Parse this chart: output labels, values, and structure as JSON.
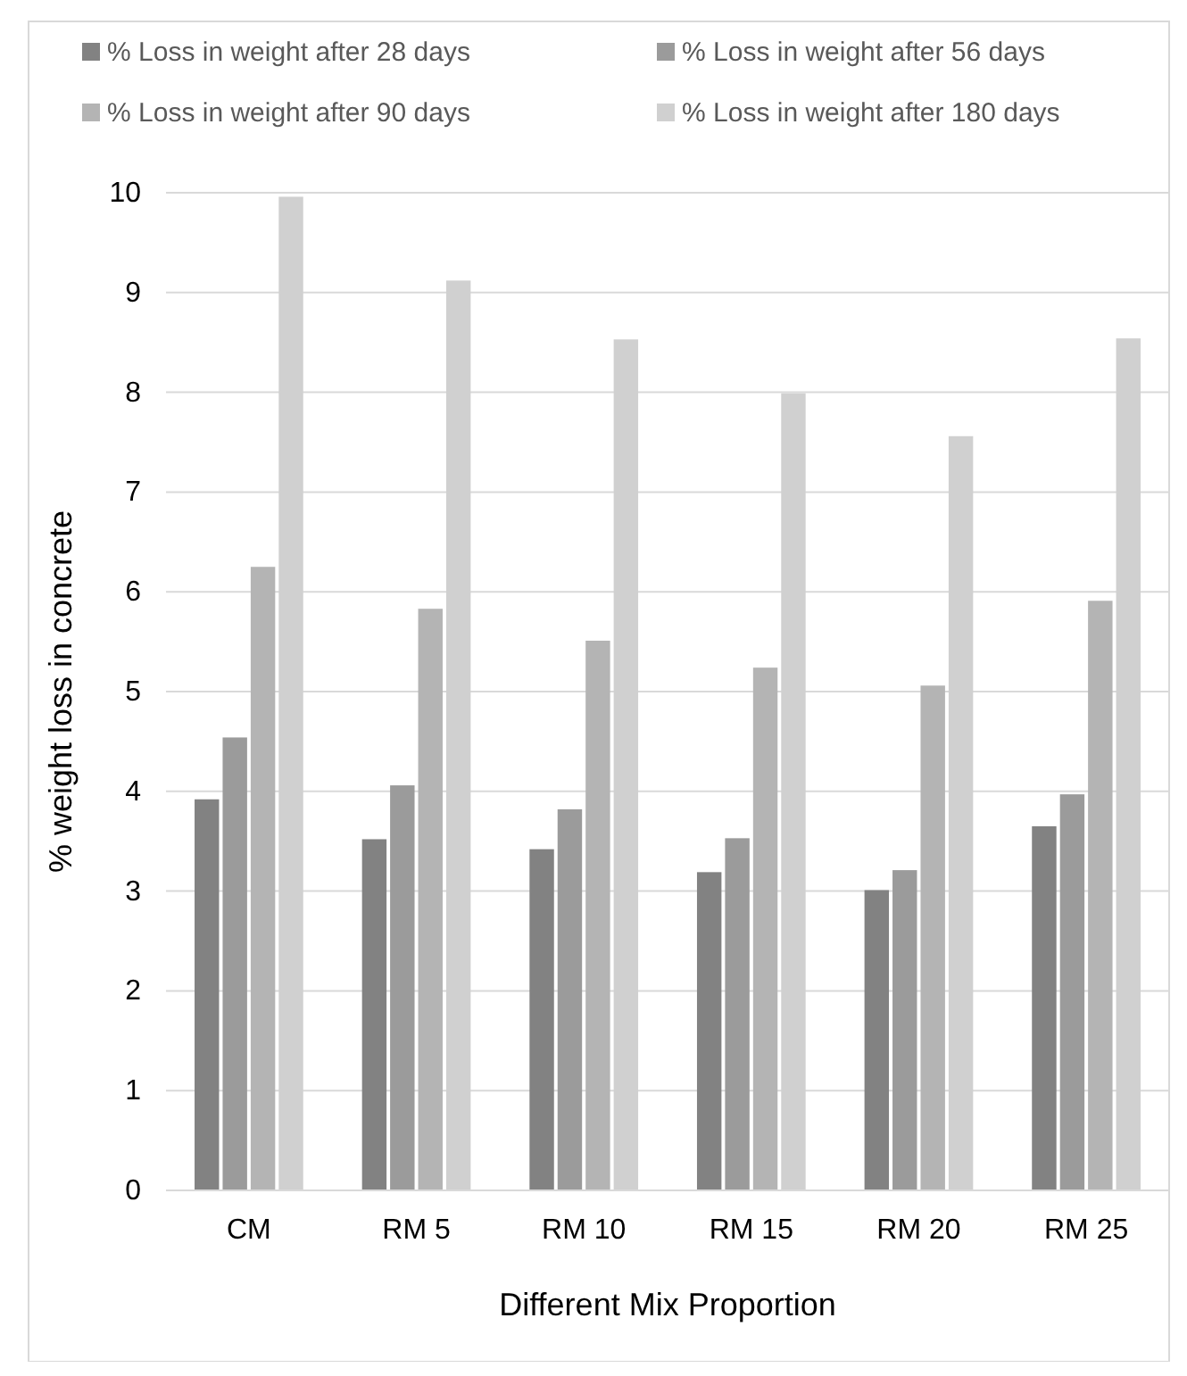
{
  "chart_data": {
    "type": "bar",
    "xlabel": "Different Mix Proportion",
    "ylabel": "% weight loss in concrete",
    "categories": [
      "CM",
      "RM 5",
      "RM 10",
      "RM 15",
      "RM 20",
      "RM 25"
    ],
    "series": [
      {
        "name": "% Loss in weight after 28 days",
        "color": "#828282",
        "values": [
          3.92,
          3.52,
          3.42,
          3.19,
          3.01,
          3.65
        ]
      },
      {
        "name": "% Loss in weight after 56 days",
        "color": "#9b9b9b",
        "values": [
          4.54,
          4.06,
          3.82,
          3.53,
          3.21,
          3.97
        ]
      },
      {
        "name": "% Loss in weight after 90 days",
        "color": "#b4b4b4",
        "values": [
          6.25,
          5.83,
          5.51,
          5.24,
          5.06,
          5.91
        ]
      },
      {
        "name": "% Loss in weight after 180 days",
        "color": "#d0d0d0",
        "values": [
          9.96,
          9.12,
          8.53,
          7.99,
          7.56,
          8.54
        ]
      }
    ],
    "ylim": [
      0,
      10
    ],
    "yticks": [
      0,
      1,
      2,
      3,
      4,
      5,
      6,
      7,
      8,
      9,
      10
    ],
    "grid": "y",
    "legend": "top"
  }
}
